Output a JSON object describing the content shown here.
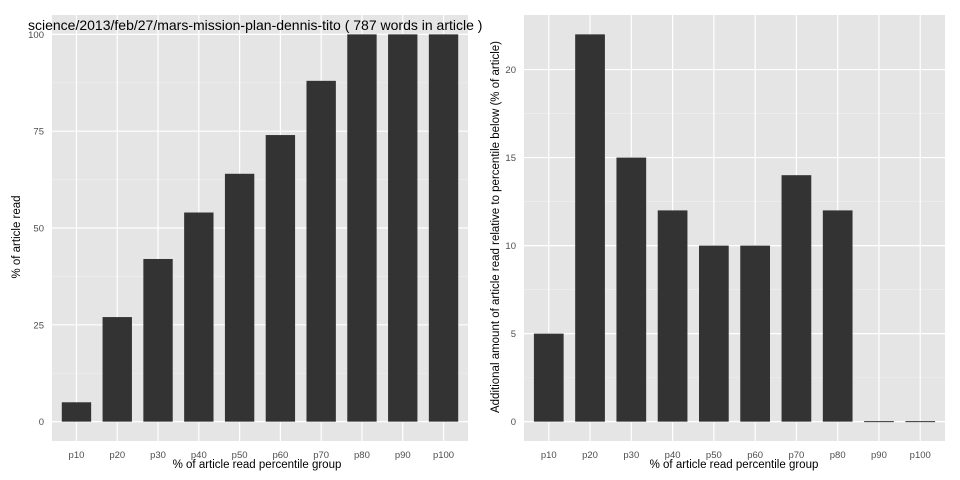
{
  "chart_data": [
    {
      "type": "bar",
      "title": "science/2013/feb/27/mars-mission-plan-dennis-tito ( 787 words in article )",
      "xlabel": "% of article read percentile group",
      "ylabel": "% of article read",
      "categories": [
        "p10",
        "p20",
        "p30",
        "p40",
        "p50",
        "p60",
        "p70",
        "p80",
        "p90",
        "p100"
      ],
      "values": [
        5,
        27,
        42,
        54,
        64,
        74,
        88,
        100,
        100,
        100
      ],
      "ylim": [
        -5,
        105
      ],
      "yticks": [
        0,
        25,
        50,
        75,
        100
      ],
      "grid": true,
      "colors": {
        "bar": "#333333",
        "panel": "#e5e5e5",
        "grid": "#ffffff",
        "minor_grid": "#f0f0f0"
      }
    },
    {
      "type": "bar",
      "title": "",
      "xlabel": "% of article read percentile group",
      "ylabel": "Additional amount of article read relative to percentile below (% of article)",
      "categories": [
        "p10",
        "p20",
        "p30",
        "p40",
        "p50",
        "p60",
        "p70",
        "p80",
        "p90",
        "p100"
      ],
      "values": [
        5,
        22,
        15,
        12,
        10,
        10,
        14,
        12,
        0,
        0
      ],
      "ylim": [
        -1.1,
        23.1
      ],
      "yticks": [
        0,
        5,
        10,
        15,
        20
      ],
      "grid": true,
      "colors": {
        "bar": "#333333",
        "panel": "#e5e5e5",
        "grid": "#ffffff",
        "minor_grid": "#f0f0f0"
      }
    }
  ]
}
